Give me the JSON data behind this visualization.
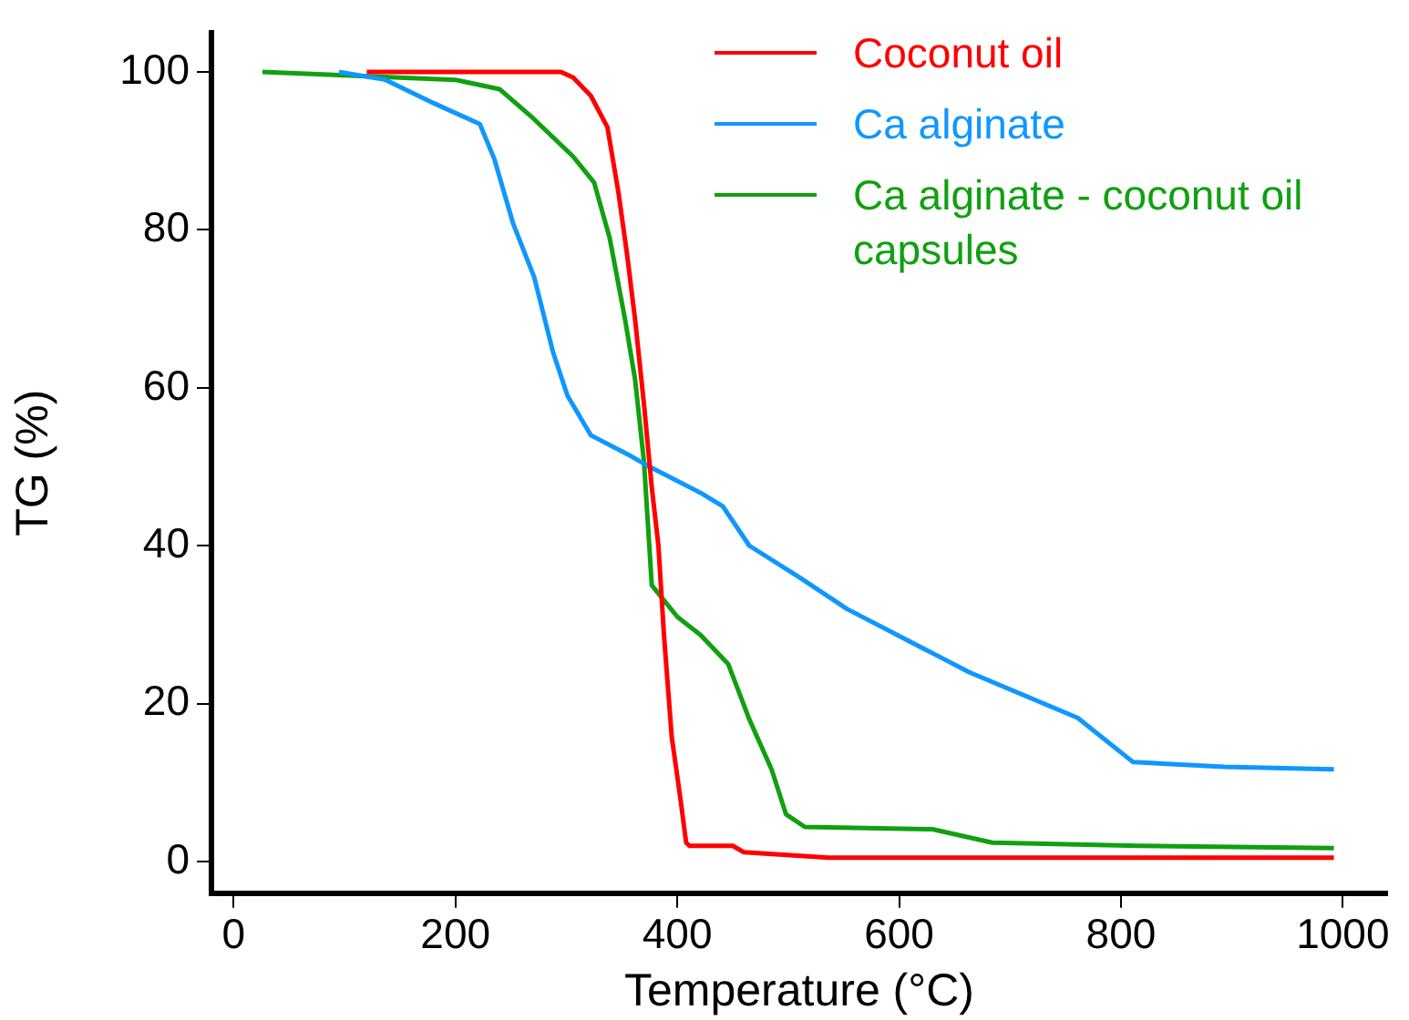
{
  "chart_data": {
    "type": "line",
    "xlabel": "Temperature (°C)",
    "ylabel": "TG (%)",
    "xlim": [
      -20,
      1040
    ],
    "ylim": [
      -4,
      105
    ],
    "xticks": [
      0,
      200,
      400,
      600,
      800,
      1000
    ],
    "yticks": [
      0,
      20,
      40,
      60,
      80,
      100
    ],
    "grid": false,
    "legend": "top right",
    "marker": "none",
    "line_style": "solid",
    "series": [
      {
        "name": "Coconut oil",
        "color": "#ff0000",
        "x": [
          120,
          295,
          306,
          322,
          337,
          347,
          355,
          362,
          370,
          377,
          383,
          388,
          395,
          403,
          408,
          411,
          450,
          460,
          536,
          992
        ],
        "values": [
          100,
          100,
          99.3,
          97,
          93,
          84.7,
          76.6,
          68.6,
          57.9,
          47.4,
          40,
          28.7,
          15.8,
          7.8,
          2.4,
          2,
          2,
          1.2,
          0.5,
          0.5
        ]
      },
      {
        "name": "Ca alginate",
        "color": "#0f97ff",
        "x": [
          95,
          137,
          181,
          222,
          235,
          252,
          271,
          288,
          301,
          322,
          355,
          375,
          421,
          441,
          465,
          510,
          553,
          663,
          761,
          811,
          893,
          992
        ],
        "values": [
          100,
          99,
          96,
          93.4,
          89,
          80.8,
          74,
          64.5,
          59,
          54,
          51.6,
          50,
          46.7,
          45,
          40,
          36,
          32,
          24,
          18.2,
          12.6,
          12,
          11.7
        ]
      },
      {
        "name": "Ca alginate - coconut oil capsules",
        "color": "#10a010",
        "x": [
          26,
          200,
          240,
          268,
          306,
          325,
          339,
          353,
          362,
          370,
          377,
          400,
          421,
          446,
          465,
          485,
          498,
          515,
          630,
          684,
          816,
          992
        ],
        "values": [
          100,
          99,
          97.8,
          94.4,
          89.3,
          86,
          79,
          68.6,
          61,
          50.6,
          35,
          31,
          28.7,
          25,
          18,
          11.7,
          6,
          4.4,
          4.1,
          2.4,
          2,
          1.7
        ]
      }
    ]
  }
}
